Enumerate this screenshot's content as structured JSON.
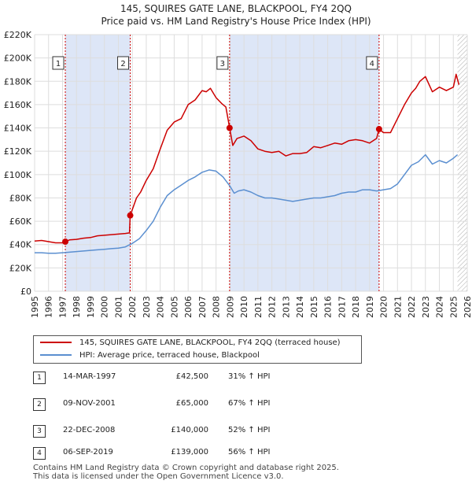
{
  "title_line1": "145, SQUIRES GATE LANE, BLACKPOOL, FY4 2QQ",
  "title_line2": "Price paid vs. HM Land Registry's House Price Index (HPI)",
  "colors": {
    "property": "#cc0000",
    "hpi": "#5b8fd0",
    "shade": "#dde6f7",
    "grid": "#dddddd"
  },
  "chart_data": {
    "type": "line",
    "title": "145, SQUIRES GATE LANE, BLACKPOOL, FY4 2QQ",
    "subtitle": "Price paid vs. HM Land Registry's House Price Index (HPI)",
    "xlim": [
      1995,
      2026
    ],
    "ylim": [
      0,
      220000
    ],
    "x_ticks": [
      1995,
      1996,
      1997,
      1998,
      1999,
      2000,
      2001,
      2002,
      2003,
      2004,
      2005,
      2006,
      2007,
      2008,
      2009,
      2010,
      2011,
      2012,
      2013,
      2014,
      2015,
      2016,
      2017,
      2018,
      2019,
      2020,
      2021,
      2022,
      2023,
      2024,
      2025,
      2026
    ],
    "y_ticks": [
      {
        "value": 0,
        "label": "£0"
      },
      {
        "value": 20000,
        "label": "£20K"
      },
      {
        "value": 40000,
        "label": "£40K"
      },
      {
        "value": 60000,
        "label": "£60K"
      },
      {
        "value": 80000,
        "label": "£80K"
      },
      {
        "value": 100000,
        "label": "£100K"
      },
      {
        "value": 120000,
        "label": "£120K"
      },
      {
        "value": 140000,
        "label": "£140K"
      },
      {
        "value": 160000,
        "label": "£160K"
      },
      {
        "value": 180000,
        "label": "£180K"
      },
      {
        "value": 200000,
        "label": "£200K"
      },
      {
        "value": 220000,
        "label": "£220K"
      }
    ],
    "shaded_periods": [
      [
        1997.2,
        2001.85
      ],
      [
        2008.97,
        2019.68
      ]
    ],
    "hatched_from": 2025.3,
    "series": [
      {
        "name": "145, SQUIRES GATE LANE, BLACKPOOL, FY4 2QQ (terraced house)",
        "color": "#cc0000",
        "x": [
          1995.0,
          1995.5,
          1996.0,
          1996.5,
          1997.0,
          1997.2,
          1997.5,
          1998.0,
          1998.5,
          1999.0,
          1999.5,
          2000.0,
          2000.5,
          2001.0,
          2001.5,
          2001.8,
          2001.85,
          2002.0,
          2002.3,
          2002.6,
          2003.0,
          2003.5,
          2004.0,
          2004.5,
          2005.0,
          2005.5,
          2006.0,
          2006.5,
          2007.0,
          2007.3,
          2007.6,
          2008.0,
          2008.4,
          2008.7,
          2008.97,
          2009.2,
          2009.5,
          2010.0,
          2010.5,
          2011.0,
          2011.5,
          2012.0,
          2012.5,
          2013.0,
          2013.5,
          2014.0,
          2014.5,
          2015.0,
          2015.5,
          2016.0,
          2016.5,
          2017.0,
          2017.5,
          2018.0,
          2018.5,
          2019.0,
          2019.5,
          2019.68,
          2020.0,
          2020.5,
          2021.0,
          2021.5,
          2022.0,
          2022.3,
          2022.6,
          2023.0,
          2023.5,
          2024.0,
          2024.5,
          2025.0,
          2025.2,
          2025.4
        ],
        "y": [
          43000,
          43500,
          42500,
          41500,
          41500,
          42500,
          44000,
          44500,
          45500,
          46000,
          47500,
          48000,
          48500,
          49000,
          49500,
          50000,
          65000,
          70000,
          80000,
          85000,
          95000,
          105000,
          122000,
          138000,
          145000,
          148000,
          160000,
          164000,
          172000,
          171000,
          174000,
          166000,
          161000,
          158000,
          140000,
          125000,
          131000,
          133000,
          129000,
          122000,
          120000,
          119000,
          120000,
          116000,
          118000,
          118000,
          119000,
          124000,
          123000,
          125000,
          127000,
          126000,
          129000,
          130000,
          129000,
          127000,
          131000,
          139000,
          136000,
          136000,
          148000,
          160000,
          170000,
          174000,
          180000,
          184000,
          171000,
          175000,
          172000,
          175000,
          186000,
          177000
        ]
      },
      {
        "name": "HPI: Average price, terraced house, Blackpool",
        "color": "#5b8fd0",
        "x": [
          1995.0,
          1995.5,
          1996.0,
          1996.5,
          1997.0,
          1997.5,
          1998.0,
          1998.5,
          1999.0,
          1999.5,
          2000.0,
          2000.5,
          2001.0,
          2001.5,
          2002.0,
          2002.5,
          2003.0,
          2003.5,
          2004.0,
          2004.5,
          2005.0,
          2005.5,
          2006.0,
          2006.5,
          2007.0,
          2007.5,
          2008.0,
          2008.5,
          2009.0,
          2009.3,
          2009.6,
          2010.0,
          2010.5,
          2011.0,
          2011.5,
          2012.0,
          2012.5,
          2013.0,
          2013.5,
          2014.0,
          2014.5,
          2015.0,
          2015.5,
          2016.0,
          2016.5,
          2017.0,
          2017.5,
          2018.0,
          2018.5,
          2019.0,
          2019.5,
          2020.0,
          2020.5,
          2021.0,
          2021.5,
          2022.0,
          2022.5,
          2023.0,
          2023.5,
          2024.0,
          2024.5,
          2025.0,
          2025.3
        ],
        "y": [
          33000,
          33000,
          32500,
          32500,
          33000,
          33500,
          34000,
          34500,
          35000,
          35500,
          36000,
          36500,
          37000,
          38000,
          41000,
          45000,
          52000,
          60000,
          72000,
          82000,
          87000,
          91000,
          95000,
          98000,
          102000,
          104000,
          103000,
          98000,
          90000,
          84000,
          86000,
          87000,
          85000,
          82000,
          80000,
          80000,
          79000,
          78000,
          77000,
          78000,
          79000,
          80000,
          80000,
          81000,
          82000,
          84000,
          85000,
          85000,
          87000,
          87000,
          86000,
          87000,
          88000,
          92000,
          100000,
          108000,
          111000,
          117000,
          109000,
          112000,
          110000,
          114000,
          117000
        ]
      }
    ],
    "sales": [
      {
        "label": "1",
        "x": 1997.2,
        "price": 42500
      },
      {
        "label": "2",
        "x": 2001.85,
        "price": 65000
      },
      {
        "label": "3",
        "x": 2008.97,
        "price": 140000
      },
      {
        "label": "4",
        "x": 2019.68,
        "price": 139000
      }
    ]
  },
  "legend": {
    "property_label": "145, SQUIRES GATE LANE, BLACKPOOL, FY4 2QQ (terraced house)",
    "hpi_label": "HPI: Average price, terraced house, Blackpool"
  },
  "transactions": [
    {
      "num": "1",
      "date": "14-MAR-1997",
      "price": "£42,500",
      "hpi": "31% ↑ HPI"
    },
    {
      "num": "2",
      "date": "09-NOV-2001",
      "price": "£65,000",
      "hpi": "67% ↑ HPI"
    },
    {
      "num": "3",
      "date": "22-DEC-2008",
      "price": "£140,000",
      "hpi": "52% ↑ HPI"
    },
    {
      "num": "4",
      "date": "06-SEP-2019",
      "price": "£139,000",
      "hpi": "56% ↑ HPI"
    }
  ],
  "footer": {
    "line1": "Contains HM Land Registry data © Crown copyright and database right 2025.",
    "line2": "This data is licensed under the Open Government Licence v3.0."
  }
}
